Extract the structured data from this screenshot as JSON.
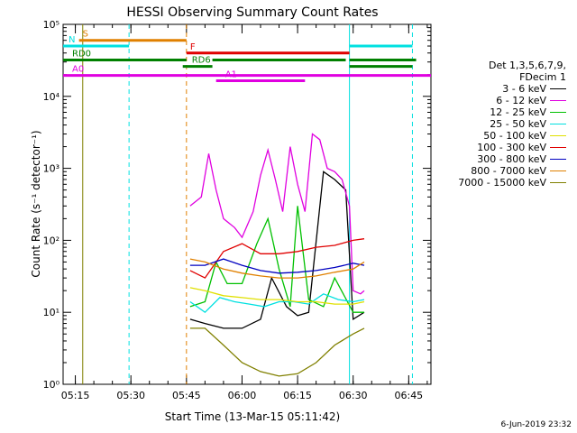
{
  "chart_data": {
    "type": "line",
    "title": "HESSI Observing Summary Count Rates",
    "xlabel": "Start Time (13-Mar-15 05:11:42)",
    "ylabel": "Count Rate (s⁻¹ detector⁻¹)",
    "yscale": "log",
    "xlim": [
      "05:11:42",
      "06:51:00"
    ],
    "ylim": [
      1,
      100000
    ],
    "x_ticks": [
      "05:15",
      "05:30",
      "05:45",
      "06:00",
      "06:15",
      "06:30",
      "06:45"
    ],
    "y_ticks": [
      "10⁰",
      "10¹",
      "10²",
      "10³",
      "10⁴",
      "10⁵"
    ],
    "legend_header": [
      "Det 1,3,5,6,7,9,",
      "FDecim 1"
    ],
    "series": [
      {
        "name": "3 - 6 keV",
        "color": "#000000",
        "x": [
          "05:46",
          "05:50",
          "05:55",
          "06:00",
          "06:05",
          "06:08",
          "06:12",
          "06:15",
          "06:18",
          "06:22",
          "06:25",
          "06:28",
          "06:30",
          "06:33"
        ],
        "values": [
          8,
          7,
          6,
          6,
          8,
          30,
          12,
          9,
          10,
          900,
          700,
          500,
          8,
          10
        ]
      },
      {
        "name": "6 - 12 keV",
        "color": "#e000e0",
        "x": [
          "05:46",
          "05:49",
          "05:51",
          "05:53",
          "05:55",
          "05:58",
          "06:00",
          "06:03",
          "06:05",
          "06:07",
          "06:09",
          "06:11",
          "06:13",
          "06:15",
          "06:17",
          "06:19",
          "06:21",
          "06:23",
          "06:25",
          "06:27",
          "06:29",
          "06:30",
          "06:32",
          "06:33"
        ],
        "values": [
          300,
          400,
          1600,
          500,
          200,
          150,
          110,
          250,
          800,
          1800,
          700,
          250,
          2000,
          600,
          250,
          3000,
          2500,
          1000,
          900,
          700,
          300,
          20,
          18,
          20
        ]
      },
      {
        "name": "12 - 25 keV",
        "color": "#00c000",
        "x": [
          "05:46",
          "05:50",
          "05:53",
          "05:56",
          "06:00",
          "06:04",
          "06:07",
          "06:10",
          "06:13",
          "06:15",
          "06:18",
          "06:22",
          "06:25",
          "06:30",
          "06:33"
        ],
        "values": [
          12,
          14,
          50,
          25,
          25,
          90,
          200,
          40,
          12,
          300,
          15,
          12,
          30,
          10,
          10
        ]
      },
      {
        "name": "25 - 50 keV",
        "color": "#00e0e0",
        "x": [
          "05:46",
          "05:50",
          "05:54",
          "05:58",
          "06:02",
          "06:06",
          "06:10",
          "06:14",
          "06:18",
          "06:22",
          "06:26",
          "06:30",
          "06:33"
        ],
        "values": [
          14,
          10,
          16,
          14,
          13,
          12,
          14,
          14,
          13,
          18,
          15,
          14,
          15
        ]
      },
      {
        "name": "50 - 100 keV",
        "color": "#e0e000",
        "x": [
          "05:46",
          "05:50",
          "05:55",
          "06:00",
          "06:05",
          "06:10",
          "06:15",
          "06:20",
          "06:25",
          "06:30",
          "06:33"
        ],
        "values": [
          22,
          20,
          17,
          16,
          15,
          15,
          14,
          14,
          13,
          13,
          14
        ]
      },
      {
        "name": "100 - 300 keV",
        "color": "#e00000",
        "x": [
          "05:46",
          "05:50",
          "05:55",
          "06:00",
          "06:05",
          "06:10",
          "06:15",
          "06:20",
          "06:25",
          "06:30",
          "06:33"
        ],
        "values": [
          38,
          30,
          70,
          90,
          65,
          65,
          70,
          80,
          85,
          100,
          105
        ]
      },
      {
        "name": "300 - 800 keV",
        "color": "#0000c0",
        "x": [
          "05:46",
          "05:50",
          "05:55",
          "06:00",
          "06:05",
          "06:10",
          "06:15",
          "06:20",
          "06:25",
          "06:30",
          "06:33"
        ],
        "values": [
          45,
          45,
          55,
          45,
          38,
          35,
          36,
          38,
          42,
          48,
          45
        ]
      },
      {
        "name": "800 - 7000 keV",
        "color": "#e08000",
        "x": [
          "05:46",
          "05:50",
          "05:55",
          "06:00",
          "06:05",
          "06:10",
          "06:15",
          "06:20",
          "06:25",
          "06:30",
          "06:33"
        ],
        "values": [
          55,
          50,
          40,
          35,
          32,
          30,
          30,
          32,
          36,
          40,
          50
        ]
      },
      {
        "name": "7000 - 15000 keV",
        "color": "#808000",
        "x": [
          "05:46",
          "05:50",
          "05:55",
          "06:00",
          "06:05",
          "06:10",
          "06:15",
          "06:20",
          "06:25",
          "06:30",
          "06:33"
        ],
        "values": [
          6,
          6,
          3.5,
          2,
          1.5,
          1.3,
          1.4,
          2,
          3.5,
          5,
          6
        ]
      }
    ],
    "flag_bars": [
      {
        "label": "S",
        "color": "#e08000",
        "y": 60000,
        "x_start": "05:16",
        "x_end": "05:45"
      },
      {
        "label": "N",
        "color": "#00e0e0",
        "y": 50000,
        "segments": [
          [
            "05:11:42",
            "05:29:30"
          ],
          [
            "06:29",
            "06:46"
          ]
        ]
      },
      {
        "label": "F",
        "color": "#e00000",
        "y": 40000,
        "x_start": "05:45",
        "x_end": "06:29"
      },
      {
        "label": "RD0",
        "color": "#008000",
        "y": 32000,
        "segments": [
          [
            "05:11:42",
            "05:45"
          ],
          [
            "05:52",
            "06:28"
          ],
          [
            "06:29",
            "06:47"
          ]
        ]
      },
      {
        "label": "RD6",
        "color": "#008000",
        "y": 26000,
        "segments": [
          [
            "05:44",
            "05:52"
          ],
          [
            "06:29",
            "06:46"
          ]
        ]
      },
      {
        "label": "A0",
        "color": "#e000e0",
        "y": 19500,
        "segments": [
          [
            "05:11:42",
            "06:51"
          ]
        ]
      },
      {
        "label": "A1",
        "color": "#e000e0",
        "y": 16500,
        "segments": [
          [
            "05:53",
            "06:17"
          ]
        ]
      }
    ],
    "vertical_markers": [
      {
        "x": "05:17",
        "color": "#808000",
        "style": "solid"
      },
      {
        "x": "05:29:30",
        "color": "#00e0e0",
        "style": "dashed"
      },
      {
        "x": "05:45",
        "color": "#e08000",
        "style": "dashed"
      },
      {
        "x": "06:29",
        "color": "#00e0e0",
        "style": "solid"
      },
      {
        "x": "06:46",
        "color": "#00e0e0",
        "style": "dashed"
      }
    ],
    "grid": false,
    "legend_placement": "right"
  },
  "footer_date": "6-Jun-2019 23:32"
}
